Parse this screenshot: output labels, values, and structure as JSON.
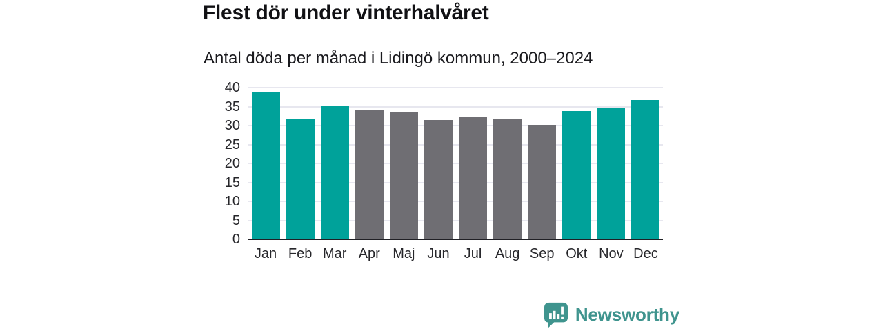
{
  "header": {
    "title": "Flest dör under vinterhalvåret",
    "subtitle": "Antal döda per månad i Lidingö kommun, 2000–2024"
  },
  "chart_data": {
    "type": "bar",
    "title": "Flest dör under vinterhalvåret",
    "subtitle": "Antal döda per månad i Lidingö kommun, 2000–2024",
    "categories": [
      "Jan",
      "Feb",
      "Mar",
      "Apr",
      "Maj",
      "Jun",
      "Jul",
      "Aug",
      "Sep",
      "Okt",
      "Nov",
      "Dec"
    ],
    "values": [
      38.8,
      31.9,
      35.3,
      34.0,
      33.5,
      31.4,
      32.3,
      31.7,
      30.2,
      33.8,
      34.8,
      36.7
    ],
    "highlighted_categories": [
      "Jan",
      "Feb",
      "Mar",
      "Okt",
      "Nov",
      "Dec"
    ],
    "xlabel": "",
    "ylabel": "",
    "ylim": [
      0,
      40
    ],
    "yticks": [
      0,
      5,
      10,
      15,
      20,
      25,
      30,
      35,
      40
    ],
    "grid": true,
    "legend": "none",
    "colors": {
      "highlight": "#00a29a",
      "base": "#6f6e73",
      "gridline": "#e7e7ef",
      "axis_line": "#202025"
    }
  },
  "footer": {
    "brand": "Newsworthy",
    "brand_color": "#3f948e",
    "logo_icon": "bar-chart-speech-bubble"
  }
}
